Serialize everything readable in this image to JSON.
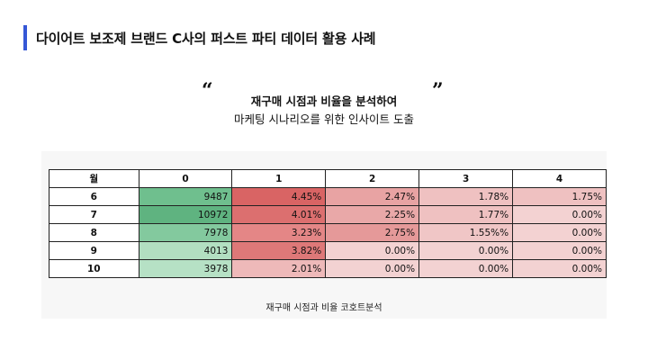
{
  "header": {
    "title": "다이어트 보조제 브랜드 C사의 퍼스트 파티 데이터 활용 사례"
  },
  "quote": {
    "open_mark": "“",
    "close_mark": "”",
    "subtitle": "재구매 시점과 비율을 분석하여",
    "description": "마케팅 시나리오를 위한 인사이트 도출"
  },
  "table": {
    "headers": [
      "월",
      "0",
      "1",
      "2",
      "3",
      "4"
    ],
    "rows": [
      {
        "month": "6",
        "cells": [
          "9487",
          "4.45%",
          "2.47%",
          "1.78%",
          "1.75%"
        ]
      },
      {
        "month": "7",
        "cells": [
          "10972",
          "4.01%",
          "2.25%",
          "1.77%",
          "0.00%"
        ]
      },
      {
        "month": "8",
        "cells": [
          "7978",
          "3.23%",
          "2.75%",
          "1.55%%",
          "0.00%"
        ]
      },
      {
        "month": "9",
        "cells": [
          "4013",
          "3.82%",
          "0.00%",
          "0.00%",
          "0.00%"
        ]
      },
      {
        "month": "10",
        "cells": [
          "3978",
          "2.01%",
          "0.00%",
          "0.00%",
          "0.00%"
        ]
      }
    ],
    "cell_colors": [
      [
        "#6fbf8e",
        "#d96464",
        "#e8a3a3",
        "#efc1c1",
        "#efc1c1"
      ],
      [
        "#5fb380",
        "#dc6f6f",
        "#e9a8a8",
        "#efc1c1",
        "#f3d2d2"
      ],
      [
        "#83c99e",
        "#e48686",
        "#e59999",
        "#f0c6c6",
        "#f3d2d2"
      ],
      [
        "#b2dfc1",
        "#de7878",
        "#f3d2d2",
        "#f3d2d2",
        "#f3d2d2"
      ],
      [
        "#b6e1c5",
        "#eeb9b9",
        "#f3d2d2",
        "#f3d2d2",
        "#f3d2d2"
      ]
    ],
    "caption": "재구매 시점과 비율 코호트분석"
  },
  "colors": {
    "accent": "#3557d6"
  }
}
